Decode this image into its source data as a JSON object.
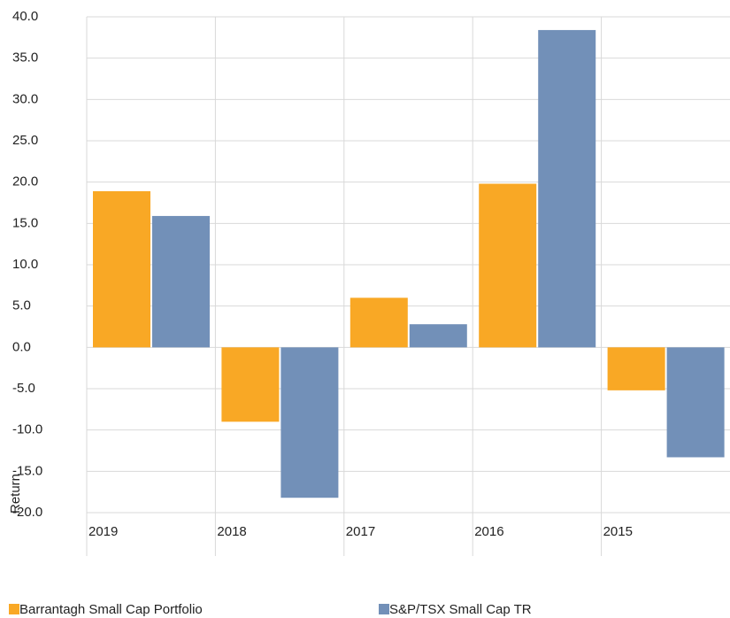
{
  "chart_data": {
    "type": "bar",
    "categories": [
      "2019",
      "2018",
      "2017",
      "2016",
      "2015"
    ],
    "series": [
      {
        "name": "Barrantagh Small Cap Portfolio",
        "color": "#f9a825",
        "values": [
          18.9,
          -9.0,
          6.0,
          19.8,
          -5.2
        ]
      },
      {
        "name": "S&P/TSX Small Cap TR",
        "color": "#7290b8",
        "values": [
          15.9,
          -18.2,
          2.8,
          38.4,
          -13.3
        ]
      }
    ],
    "y_label": "Return",
    "ylim": [
      -20,
      40
    ],
    "yticks": [
      {
        "value": -20,
        "label": "-20.0"
      },
      {
        "value": -15,
        "label": "-15.0"
      },
      {
        "value": -10,
        "label": "-10.0"
      },
      {
        "value": -5,
        "label": "-5.0"
      },
      {
        "value": 0,
        "label": "0.0"
      },
      {
        "value": 5,
        "label": "5.0"
      },
      {
        "value": 10,
        "label": "10.0"
      },
      {
        "value": 15,
        "label": "15.0"
      },
      {
        "value": 20,
        "label": "20.0"
      },
      {
        "value": 25,
        "label": "25.0"
      },
      {
        "value": 30,
        "label": "30.0"
      },
      {
        "value": 35,
        "label": "35.0"
      },
      {
        "value": 40,
        "label": "40.0"
      }
    ],
    "grid": true,
    "legend": "bottom"
  }
}
